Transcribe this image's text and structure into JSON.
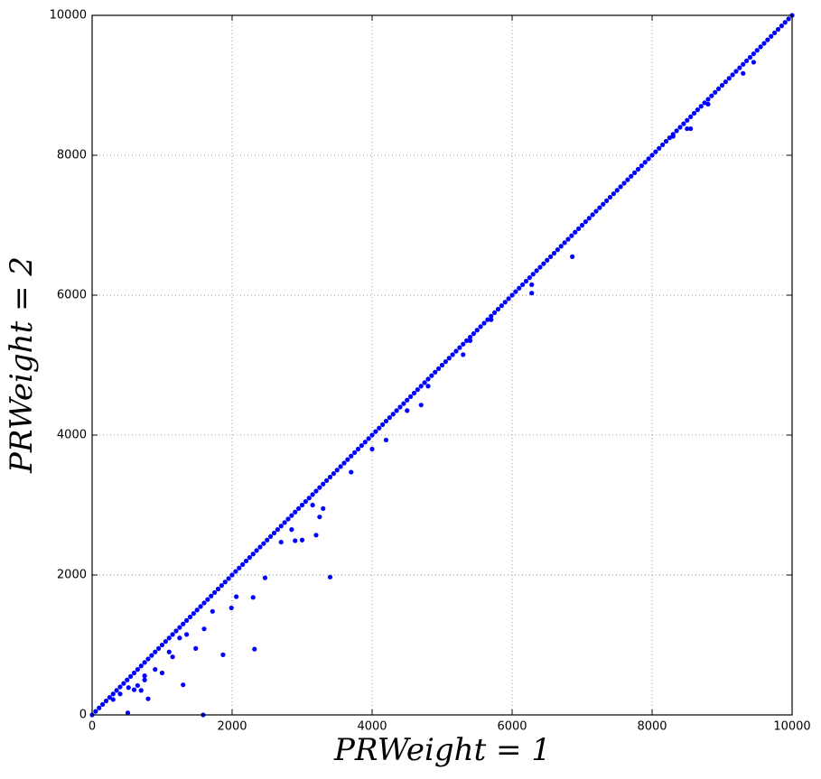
{
  "chart_data": {
    "type": "scatter",
    "xlabel": "PRWeight = 1",
    "ylabel": "PRWeight = 2",
    "color": "#0000ff",
    "xlim": [
      0,
      10000
    ],
    "ylim": [
      0,
      10000
    ],
    "xticks": [
      0,
      2000,
      4000,
      6000,
      8000,
      10000
    ],
    "yticks": [
      0,
      2000,
      4000,
      6000,
      8000,
      10000
    ],
    "grid": true,
    "x": [
      0,
      50,
      100,
      150,
      200,
      250,
      300,
      350,
      400,
      450,
      500,
      550,
      600,
      650,
      700,
      750,
      800,
      850,
      900,
      950,
      1000,
      1050,
      1100,
      1150,
      1200,
      1250,
      1300,
      1350,
      1400,
      1450,
      1500,
      1550,
      1600,
      1650,
      1700,
      1750,
      1800,
      1850,
      1900,
      1950,
      2000,
      2050,
      2100,
      2150,
      2200,
      2250,
      2300,
      2350,
      2400,
      2450,
      2500,
      2550,
      2600,
      2650,
      2700,
      2750,
      2800,
      2850,
      2900,
      2950,
      3000,
      3050,
      3100,
      3150,
      3200,
      3250,
      3300,
      3350,
      3400,
      3450,
      3500,
      3550,
      3600,
      3650,
      3700,
      3750,
      3800,
      3850,
      3900,
      3950,
      4000,
      4050,
      4100,
      4150,
      4200,
      4250,
      4300,
      4350,
      4400,
      4450,
      4500,
      4550,
      4600,
      4650,
      4700,
      4750,
      4800,
      4850,
      4900,
      4950,
      5000,
      5050,
      5100,
      5150,
      5200,
      5250,
      5300,
      5350,
      5400,
      5450,
      5500,
      5550,
      5600,
      5650,
      5700,
      5750,
      5800,
      5850,
      5900,
      5950,
      6000,
      6050,
      6100,
      6150,
      6200,
      6250,
      6300,
      6350,
      6400,
      6450,
      6500,
      6550,
      6600,
      6650,
      6700,
      6750,
      6800,
      6850,
      6900,
      6950,
      7000,
      7050,
      7100,
      7150,
      7200,
      7250,
      7300,
      7350,
      7400,
      7450,
      7500,
      7550,
      7600,
      7650,
      7700,
      7750,
      7800,
      7850,
      7900,
      7950,
      8000,
      8050,
      8100,
      8150,
      8200,
      8250,
      8300,
      8350,
      8400,
      8450,
      8500,
      8550,
      8600,
      8650,
      8700,
      8750,
      8800,
      8850,
      8900,
      8950,
      9000,
      9050,
      9100,
      9150,
      9200,
      9250,
      9300,
      9350,
      9400,
      9450,
      9500,
      9550,
      9600,
      9650,
      9700,
      9750,
      9800,
      9850,
      9900,
      9950,
      10000,
      1587,
      510,
      1870,
      2320,
      1300,
      800,
      3400,
      2470,
      2300,
      1990,
      2060,
      1480,
      1000,
      900,
      1150,
      1100,
      1720,
      1600,
      3200,
      2900,
      3000,
      3300,
      3250,
      3700,
      4000,
      4200,
      4500,
      4700,
      4800,
      5300,
      5400,
      5700,
      6280,
      6280,
      6860,
      8500,
      8550,
      8300,
      8800,
      9300,
      9450,
      600,
      700,
      650,
      520,
      400,
      300,
      750,
      750,
      1250,
      1350,
      2700,
      2850,
      3150
    ],
    "values": [
      0,
      50,
      100,
      150,
      200,
      250,
      300,
      350,
      400,
      450,
      500,
      550,
      600,
      650,
      700,
      750,
      800,
      850,
      900,
      950,
      1000,
      1050,
      1100,
      1150,
      1200,
      1250,
      1300,
      1350,
      1400,
      1450,
      1500,
      1550,
      1600,
      1650,
      1700,
      1750,
      1800,
      1850,
      1900,
      1950,
      2000,
      2050,
      2100,
      2150,
      2200,
      2250,
      2300,
      2350,
      2400,
      2450,
      2500,
      2550,
      2600,
      2650,
      2700,
      2750,
      2800,
      2850,
      2900,
      2950,
      3000,
      3050,
      3100,
      3150,
      3200,
      3250,
      3300,
      3350,
      3400,
      3450,
      3500,
      3550,
      3600,
      3650,
      3700,
      3750,
      3800,
      3850,
      3900,
      3950,
      4000,
      4050,
      4100,
      4150,
      4200,
      4250,
      4300,
      4350,
      4400,
      4450,
      4500,
      4550,
      4600,
      4650,
      4700,
      4750,
      4800,
      4850,
      4900,
      4950,
      5000,
      5050,
      5100,
      5150,
      5200,
      5250,
      5300,
      5350,
      5400,
      5450,
      5500,
      5550,
      5600,
      5650,
      5700,
      5750,
      5800,
      5850,
      5900,
      5950,
      6000,
      6050,
      6100,
      6150,
      6200,
      6250,
      6300,
      6350,
      6400,
      6450,
      6500,
      6550,
      6600,
      6650,
      6700,
      6750,
      6800,
      6850,
      6900,
      6950,
      7000,
      7050,
      7100,
      7150,
      7200,
      7250,
      7300,
      7350,
      7400,
      7450,
      7500,
      7550,
      7600,
      7650,
      7700,
      7750,
      7800,
      7850,
      7900,
      7950,
      8000,
      8050,
      8100,
      8150,
      8200,
      8250,
      8300,
      8350,
      8400,
      8450,
      8500,
      8550,
      8600,
      8650,
      8700,
      8750,
      8800,
      8850,
      8900,
      8950,
      9000,
      9050,
      9100,
      9150,
      9200,
      9250,
      9300,
      9350,
      9400,
      9450,
      9500,
      9550,
      9600,
      9650,
      9700,
      9750,
      9800,
      9850,
      9900,
      9950,
      10000,
      0,
      30,
      860,
      940,
      430,
      230,
      1970,
      1960,
      1680,
      1530,
      1690,
      950,
      600,
      650,
      830,
      900,
      1480,
      1230,
      2570,
      2490,
      2500,
      2950,
      2830,
      3470,
      3800,
      3930,
      4350,
      4430,
      4700,
      5150,
      5350,
      5650,
      6030,
      6150,
      6550,
      8380,
      8380,
      8270,
      8730,
      9170,
      9330,
      360,
      350,
      420,
      390,
      300,
      220,
      500,
      560,
      1100,
      1150,
      2470,
      2650,
      3000
    ]
  }
}
